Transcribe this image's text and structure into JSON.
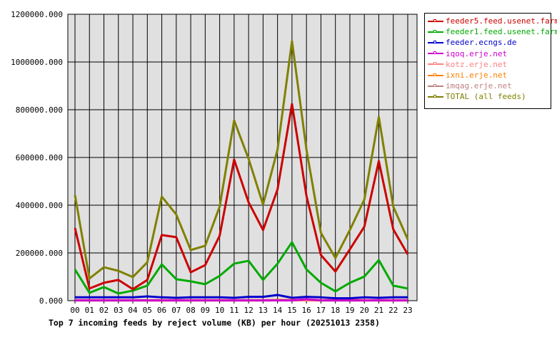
{
  "chart_data": {
    "type": "line",
    "title": "Top 7 incoming feeds by reject volume (KB) per hour (20251013 2358)",
    "xlabel": "",
    "ylabel": "",
    "categories": [
      "00",
      "01",
      "02",
      "03",
      "04",
      "05",
      "06",
      "07",
      "08",
      "09",
      "10",
      "11",
      "12",
      "13",
      "14",
      "15",
      "16",
      "17",
      "18",
      "19",
      "20",
      "21",
      "22",
      "23"
    ],
    "ylim": [
      0,
      1200000
    ],
    "yticks": [
      "0.000",
      "200000.000",
      "400000.000",
      "600000.000",
      "800000.000",
      "1000000.000",
      "1200000.000"
    ],
    "grid": true,
    "legend_position": "right",
    "series": [
      {
        "name": "feeder5.feed.usenet.farm",
        "color": "#cc0000",
        "values": [
          304000,
          51000,
          75000,
          87000,
          48000,
          87000,
          275000,
          266000,
          119000,
          149000,
          272000,
          591000,
          412000,
          296000,
          466000,
          824000,
          439000,
          191000,
          122000,
          215000,
          310000,
          585000,
          299000,
          194000
        ]
      },
      {
        "name": "feeder1.feed.usenet.farm",
        "color": "#00aa00",
        "values": [
          131000,
          33000,
          57000,
          30000,
          42000,
          63000,
          152000,
          90000,
          81000,
          69000,
          104000,
          155000,
          167000,
          87000,
          155000,
          245000,
          131000,
          75000,
          39000,
          75000,
          101000,
          170000,
          63000,
          51000
        ]
      },
      {
        "name": "feeder.ecngs.de",
        "color": "#0000cc",
        "values": [
          14000,
          14000,
          14000,
          14000,
          14000,
          18000,
          14000,
          12000,
          14000,
          14000,
          14000,
          12000,
          16000,
          16000,
          24000,
          12000,
          16000,
          14000,
          10000,
          10000,
          14000,
          12000,
          14000,
          14000
        ]
      },
      {
        "name": "iqoq.erje.net",
        "color": "#cc00cc",
        "values": [
          1000,
          1000,
          1000,
          1000,
          1000,
          1000,
          1000,
          1000,
          1000,
          1000,
          1000,
          1000,
          1000,
          1000,
          1000,
          1000,
          6000,
          1000,
          1000,
          1000,
          1000,
          1000,
          1000,
          1000
        ]
      },
      {
        "name": "kotz.erje.net",
        "color": "#ff8080",
        "values": [
          2000,
          2000,
          2000,
          2000,
          2000,
          2000,
          2000,
          2000,
          2000,
          2000,
          2000,
          2000,
          2000,
          2000,
          2000,
          2000,
          2000,
          2000,
          3000,
          3000,
          2000,
          2000,
          2000,
          2000
        ]
      },
      {
        "name": "ixni.erje.net",
        "color": "#ff8000",
        "values": [
          1000,
          1000,
          1000,
          1000,
          1000,
          1000,
          1000,
          1000,
          1000,
          1000,
          1000,
          1000,
          1000,
          1000,
          3000,
          3000,
          1000,
          1000,
          1000,
          1000,
          1000,
          1000,
          1000,
          1000
        ]
      },
      {
        "name": "imqag.erje.net",
        "color": "#c08080",
        "values": [
          2000,
          2000,
          2000,
          2000,
          2000,
          2000,
          2000,
          2000,
          2000,
          2000,
          2000,
          2000,
          2000,
          2000,
          2000,
          2000,
          2000,
          2000,
          2000,
          2000,
          2000,
          2000,
          2000,
          2000
        ]
      },
      {
        "name": "TOTAL (all feeds)",
        "color": "#808000",
        "values": [
          442000,
          93000,
          140000,
          125000,
          99000,
          161000,
          436000,
          361000,
          212000,
          230000,
          394000,
          755000,
          594000,
          403000,
          633000,
          1087000,
          633000,
          284000,
          179000,
          296000,
          424000,
          770000,
          394000,
          257000
        ]
      }
    ]
  }
}
